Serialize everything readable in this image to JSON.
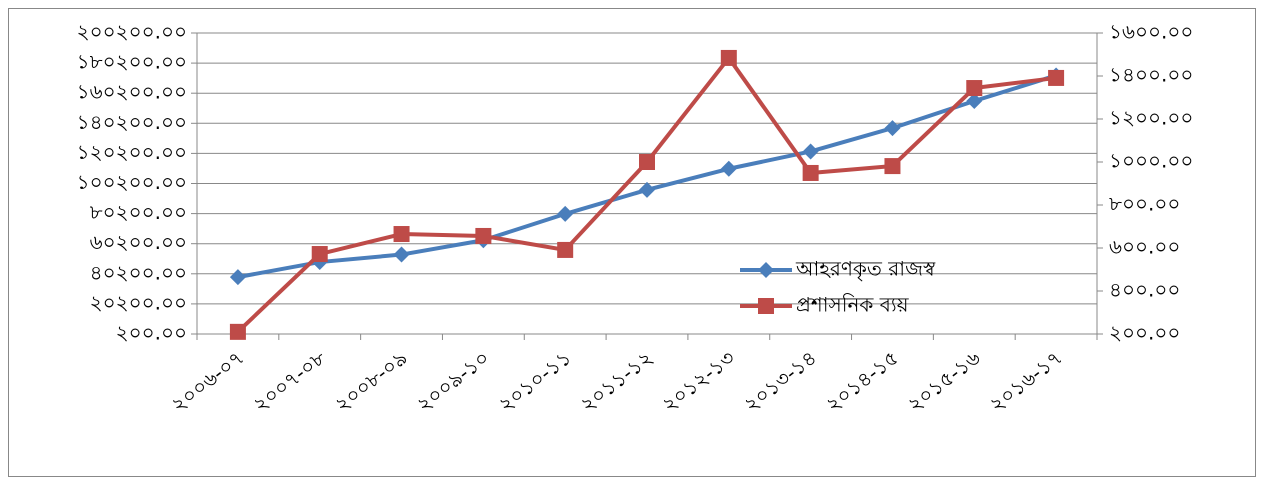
{
  "chart_data": {
    "type": "line",
    "categories": [
      "২০০৬-০৭",
      "২০০৭-০৮",
      "২০০৮-০৯",
      "২০০৯-১০",
      "২০১০-১১",
      "২০১১-১২",
      "২০১২-১৩",
      "২০১৩-১৪",
      "২০১৪-১৫",
      "২০১৫-১৬",
      "২০১৬-১৭"
    ],
    "series": [
      {
        "name": "আহরণকৃত রাজস্ব",
        "color": "#4a7ebb",
        "marker": "diamond",
        "values": [
          38000,
          48000,
          53000,
          62500,
          80000,
          96000,
          110000,
          121500,
          137000,
          155000,
          172000
        ]
      },
      {
        "name": "প্রশাসনিক ব্যয়",
        "color": "#be4b48",
        "marker": "square",
        "axis": "y2",
        "values": [
          210,
          572,
          665,
          656,
          591,
          1000,
          1484,
          949,
          981,
          1344,
          1391
        ]
      }
    ],
    "ylim": [
      200,
      200200
    ],
    "yticks": [
      {
        "value": 200,
        "label": "২০০.০০"
      },
      {
        "value": 20200,
        "label": "২০২০০.০০"
      },
      {
        "value": 40200,
        "label": "৪০২০০.০০"
      },
      {
        "value": 60200,
        "label": "৬০২০০.০০"
      },
      {
        "value": 80200,
        "label": "৮০২০০.০০"
      },
      {
        "value": 100200,
        "label": "১০০২০০.০০"
      },
      {
        "value": 120200,
        "label": "১২০২০০.০০"
      },
      {
        "value": 140200,
        "label": "১৪০২০০.০০"
      },
      {
        "value": 160200,
        "label": "১৬০২০০.০০"
      },
      {
        "value": 180200,
        "label": "১৮০২০০.০০"
      },
      {
        "value": 200200,
        "label": "২০০২০০.০০"
      }
    ],
    "y2lim": [
      200,
      1600
    ],
    "y2ticks": [
      {
        "value": 200,
        "label": "২০০.০০"
      },
      {
        "value": 400,
        "label": "৪০০.০০"
      },
      {
        "value": 600,
        "label": "৬০০.০০"
      },
      {
        "value": 800,
        "label": "৮০০.০০"
      },
      {
        "value": 1000,
        "label": "১০০০.০০"
      },
      {
        "value": 1200,
        "label": "১২০০.০০"
      },
      {
        "value": 1400,
        "label": "১৪০০.০০"
      },
      {
        "value": 1600,
        "label": "১৬০০.০০"
      }
    ],
    "grid": true,
    "legend": "lower right"
  }
}
